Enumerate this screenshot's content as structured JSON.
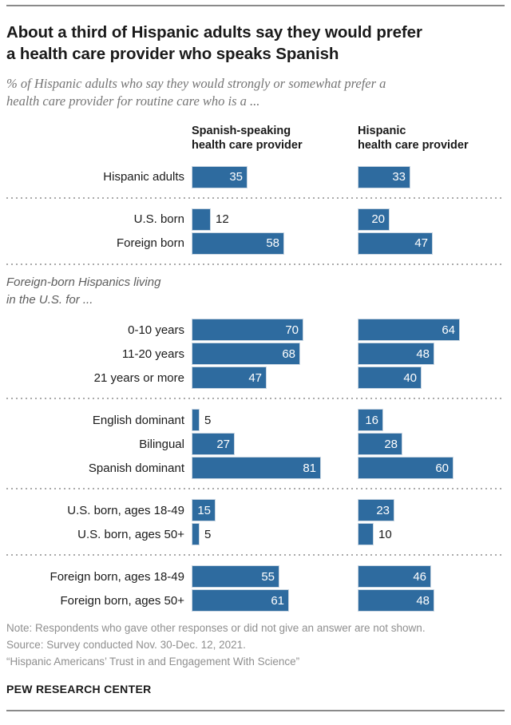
{
  "header": {
    "title": "About a third of Hispanic adults say they would prefer a health care provider who speaks Spanish",
    "title_lines": [
      "About a third of Hispanic adults say they would prefer",
      "a health care provider who speaks Spanish"
    ],
    "subtitle": "% of Hispanic adults who say they would strongly or somewhat prefer a health care provider for routine care who is a ...",
    "subtitle_lines": [
      "% of Hispanic adults who say they would strongly or somewhat prefer a",
      "health care provider for routine care who is a ..."
    ]
  },
  "chart_data": {
    "type": "bar",
    "units": "% of Hispanic adults",
    "series": [
      "Spanish-speaking health care provider",
      "Hispanic health care provider"
    ],
    "col_headers": [
      {
        "line1": "Spanish-speaking",
        "line2": "health care provider"
      },
      {
        "line1": "Hispanic",
        "line2": "health care provider"
      }
    ],
    "bar_color": "#2E6B9F",
    "xlim": [
      0,
      100
    ],
    "legend_position": "top",
    "grid": false,
    "groups": [
      {
        "rows": [
          {
            "label": "Hispanic adults",
            "values": [
              35,
              33
            ]
          }
        ]
      },
      {
        "rows": [
          {
            "label": "U.S. born",
            "values": [
              12,
              20
            ]
          },
          {
            "label": "Foreign born",
            "values": [
              58,
              47
            ]
          }
        ]
      },
      {
        "label": "Foreign-born Hispanics living in the U.S. for ...",
        "label_lines": [
          "Foreign-born Hispanics living",
          "in the U.S. for ..."
        ],
        "rows": [
          {
            "label": "0-10 years",
            "values": [
              70,
              64
            ]
          },
          {
            "label": "11-20 years",
            "values": [
              68,
              48
            ]
          },
          {
            "label": "21 years or more",
            "values": [
              47,
              40
            ]
          }
        ]
      },
      {
        "rows": [
          {
            "label": "English dominant",
            "values": [
              5,
              16
            ]
          },
          {
            "label": "Bilingual",
            "values": [
              27,
              28
            ]
          },
          {
            "label": "Spanish dominant",
            "values": [
              81,
              60
            ]
          }
        ]
      },
      {
        "rows": [
          {
            "label": "U.S. born, ages 18-49",
            "values": [
              15,
              23
            ]
          },
          {
            "label": "U.S. born, ages 50+",
            "values": [
              5,
              10
            ]
          }
        ]
      },
      {
        "rows": [
          {
            "label": "Foreign born, ages 18-49",
            "values": [
              55,
              46
            ]
          },
          {
            "label": "Foreign born, ages 50+",
            "values": [
              61,
              48
            ]
          }
        ]
      }
    ]
  },
  "footer": {
    "note": "Note: Respondents who gave other responses or did not give an answer are not shown.",
    "source": "Source: Survey conducted Nov. 30-Dec. 12, 2021.",
    "report": "“Hispanic Americans’ Trust in and Engagement With Science”",
    "brand": "PEW RESEARCH CENTER"
  }
}
